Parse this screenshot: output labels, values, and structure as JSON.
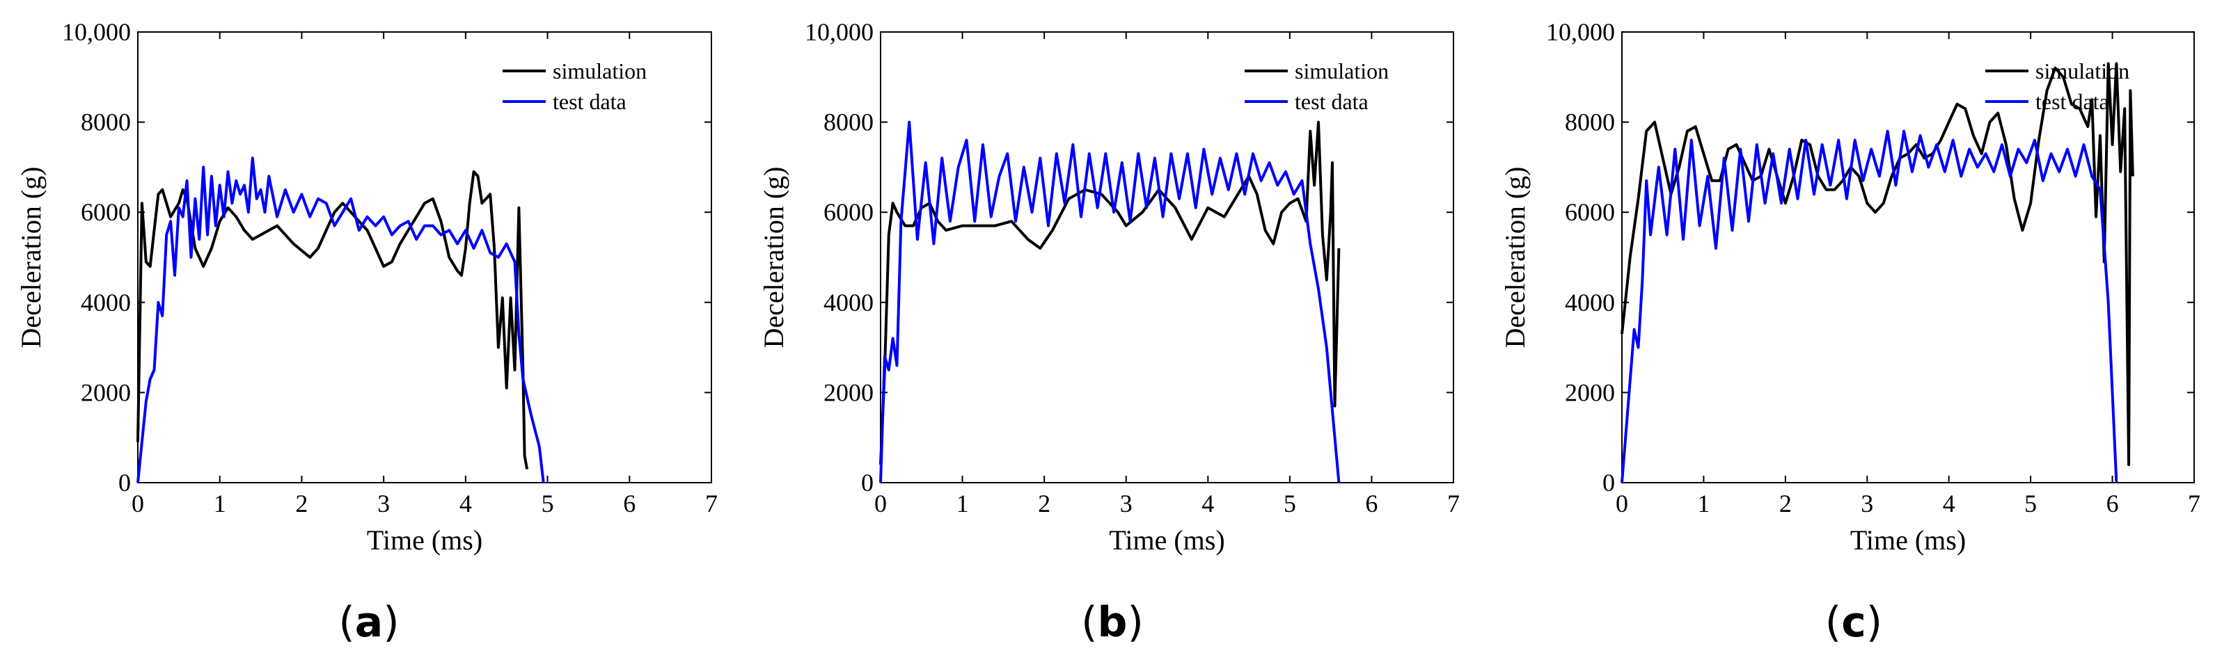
{
  "chart_data": [
    {
      "type": "line",
      "panel_label": "a",
      "xlabel": "Time (ms)",
      "ylabel": "Deceleration (g)",
      "xlim": [
        0,
        7
      ],
      "ylim": [
        0,
        10000
      ],
      "x_ticks": [
        "0",
        "1",
        "2",
        "3",
        "4",
        "5",
        "6",
        "7"
      ],
      "y_ticks": [
        "0",
        "2000",
        "4000",
        "6000",
        "8000",
        "10,000"
      ],
      "legend_position": "top-right",
      "series": [
        {
          "name": "simulation",
          "color": "#000000",
          "x": [
            0.0,
            0.05,
            0.1,
            0.15,
            0.2,
            0.25,
            0.3,
            0.4,
            0.5,
            0.55,
            0.6,
            0.7,
            0.8,
            0.9,
            1.0,
            1.1,
            1.2,
            1.3,
            1.4,
            1.5,
            1.7,
            1.9,
            2.1,
            2.2,
            2.3,
            2.4,
            2.5,
            2.6,
            2.7,
            2.8,
            2.9,
            3.0,
            3.1,
            3.2,
            3.3,
            3.5,
            3.6,
            3.7,
            3.8,
            3.9,
            3.95,
            4.0,
            4.05,
            4.1,
            4.15,
            4.2,
            4.3,
            4.35,
            4.4,
            4.45,
            4.5,
            4.55,
            4.6,
            4.65,
            4.7,
            4.72,
            4.75
          ],
          "y": [
            900,
            6200,
            4900,
            4800,
            5600,
            6400,
            6500,
            5900,
            6200,
            6500,
            6300,
            5200,
            4800,
            5200,
            5800,
            6100,
            5900,
            5600,
            5400,
            5500,
            5700,
            5300,
            5000,
            5200,
            5600,
            6000,
            6200,
            6000,
            5800,
            5600,
            5200,
            4800,
            4900,
            5300,
            5600,
            6200,
            6300,
            5800,
            5000,
            4700,
            4600,
            5200,
            6200,
            6900,
            6800,
            6200,
            6400,
            5200,
            3000,
            4100,
            2100,
            4100,
            2500,
            6100,
            2500,
            600,
            300
          ]
        },
        {
          "name": "test data",
          "color": "#0000ff",
          "x": [
            0.0,
            0.1,
            0.15,
            0.2,
            0.25,
            0.3,
            0.35,
            0.4,
            0.45,
            0.5,
            0.55,
            0.6,
            0.65,
            0.7,
            0.75,
            0.8,
            0.85,
            0.9,
            0.95,
            1.0,
            1.05,
            1.1,
            1.15,
            1.2,
            1.25,
            1.3,
            1.35,
            1.4,
            1.45,
            1.5,
            1.55,
            1.6,
            1.7,
            1.8,
            1.9,
            2.0,
            2.1,
            2.2,
            2.3,
            2.4,
            2.5,
            2.6,
            2.7,
            2.8,
            2.9,
            3.0,
            3.1,
            3.2,
            3.3,
            3.4,
            3.5,
            3.6,
            3.7,
            3.8,
            3.9,
            4.0,
            4.1,
            4.2,
            4.3,
            4.4,
            4.5,
            4.6,
            4.65,
            4.7,
            4.8,
            4.9,
            4.95
          ],
          "y": [
            0,
            1800,
            2300,
            2500,
            4000,
            3700,
            5500,
            5800,
            4600,
            6100,
            5900,
            6700,
            5000,
            6300,
            5400,
            7000,
            5500,
            6800,
            5700,
            6600,
            5900,
            6900,
            6200,
            6700,
            6400,
            6600,
            6000,
            7200,
            6300,
            6500,
            6000,
            6800,
            5900,
            6500,
            6000,
            6400,
            5900,
            6300,
            6200,
            5700,
            6000,
            6300,
            5600,
            5900,
            5700,
            5900,
            5500,
            5700,
            5800,
            5400,
            5700,
            5700,
            5500,
            5600,
            5300,
            5600,
            5200,
            5600,
            5100,
            5000,
            5300,
            4900,
            3300,
            2300,
            1500,
            800,
            0
          ]
        }
      ]
    },
    {
      "type": "line",
      "panel_label": "b",
      "xlabel": "Time (ms)",
      "ylabel": "Deceleration (g)",
      "xlim": [
        0,
        7
      ],
      "ylim": [
        0,
        10000
      ],
      "x_ticks": [
        "0",
        "1",
        "2",
        "3",
        "4",
        "5",
        "6",
        "7"
      ],
      "y_ticks": [
        "0",
        "2000",
        "4000",
        "6000",
        "8000",
        "10,000"
      ],
      "legend_position": "top-right",
      "series": [
        {
          "name": "simulation",
          "color": "#000000",
          "x": [
            0.0,
            0.05,
            0.1,
            0.15,
            0.2,
            0.3,
            0.4,
            0.5,
            0.6,
            0.7,
            0.8,
            1.0,
            1.2,
            1.4,
            1.6,
            1.8,
            1.95,
            2.1,
            2.3,
            2.5,
            2.7,
            2.9,
            3.0,
            3.2,
            3.4,
            3.6,
            3.8,
            4.0,
            4.2,
            4.4,
            4.5,
            4.6,
            4.7,
            4.8,
            4.9,
            5.0,
            5.1,
            5.2,
            5.25,
            5.3,
            5.35,
            5.4,
            5.45,
            5.5,
            5.52,
            5.55,
            5.6
          ],
          "y": [
            400,
            2500,
            5500,
            6200,
            6000,
            5700,
            5700,
            6100,
            6200,
            5800,
            5600,
            5700,
            5700,
            5700,
            5800,
            5400,
            5200,
            5600,
            6300,
            6500,
            6400,
            6000,
            5700,
            6000,
            6500,
            6100,
            5400,
            6100,
            5900,
            6500,
            6800,
            6400,
            5600,
            5300,
            6000,
            6200,
            6300,
            5800,
            7800,
            6600,
            8000,
            5500,
            4500,
            6000,
            7100,
            1700,
            5200
          ]
        },
        {
          "name": "test data",
          "color": "#0000ff",
          "x": [
            0.0,
            0.05,
            0.1,
            0.15,
            0.2,
            0.25,
            0.35,
            0.45,
            0.55,
            0.65,
            0.75,
            0.85,
            0.95,
            1.05,
            1.15,
            1.25,
            1.35,
            1.45,
            1.55,
            1.65,
            1.75,
            1.85,
            1.95,
            2.05,
            2.15,
            2.25,
            2.35,
            2.45,
            2.55,
            2.65,
            2.75,
            2.85,
            2.95,
            3.05,
            3.15,
            3.25,
            3.35,
            3.45,
            3.55,
            3.65,
            3.75,
            3.85,
            3.95,
            4.05,
            4.15,
            4.25,
            4.35,
            4.45,
            4.55,
            4.65,
            4.75,
            4.85,
            4.95,
            5.05,
            5.15,
            5.25,
            5.35,
            5.45,
            5.55,
            5.6
          ],
          "y": [
            0,
            2800,
            2500,
            3200,
            2600,
            5800,
            8000,
            5400,
            7100,
            5300,
            7200,
            5800,
            7000,
            7600,
            5800,
            7500,
            5900,
            6800,
            7300,
            5800,
            7000,
            6000,
            7200,
            5700,
            7300,
            6200,
            7500,
            5900,
            7300,
            6100,
            7300,
            6000,
            7100,
            5800,
            7300,
            6100,
            7200,
            5900,
            7300,
            6300,
            7300,
            6100,
            7400,
            6400,
            7200,
            6500,
            7300,
            6400,
            7300,
            6700,
            7100,
            6600,
            6900,
            6400,
            6700,
            5300,
            4300,
            3000,
            1000,
            0
          ]
        }
      ]
    },
    {
      "type": "line",
      "panel_label": "c",
      "xlabel": "Time (ms)",
      "ylabel": "Deceleration (g)",
      "xlim": [
        0,
        7
      ],
      "ylim": [
        0,
        10000
      ],
      "x_ticks": [
        "0",
        "1",
        "2",
        "3",
        "4",
        "5",
        "6",
        "7"
      ],
      "y_ticks": [
        "0",
        "2000",
        "4000",
        "6000",
        "8000",
        "10,000"
      ],
      "legend_position": "top-right",
      "series": [
        {
          "name": "simulation",
          "color": "#000000",
          "x": [
            0.0,
            0.1,
            0.2,
            0.3,
            0.4,
            0.5,
            0.6,
            0.7,
            0.8,
            0.9,
            1.0,
            1.1,
            1.2,
            1.3,
            1.4,
            1.5,
            1.6,
            1.7,
            1.8,
            1.9,
            2.0,
            2.1,
            2.2,
            2.3,
            2.4,
            2.5,
            2.6,
            2.7,
            2.8,
            2.9,
            3.0,
            3.1,
            3.2,
            3.3,
            3.4,
            3.5,
            3.6,
            3.7,
            3.8,
            3.9,
            4.0,
            4.1,
            4.2,
            4.3,
            4.4,
            4.5,
            4.6,
            4.7,
            4.8,
            4.9,
            5.0,
            5.1,
            5.2,
            5.3,
            5.4,
            5.5,
            5.6,
            5.7,
            5.75,
            5.8,
            5.85,
            5.9,
            5.95,
            6.0,
            6.05,
            6.1,
            6.15,
            6.2,
            6.22,
            6.25
          ],
          "y": [
            3300,
            5000,
            6300,
            7800,
            8000,
            7200,
            6400,
            7000,
            7800,
            7900,
            7300,
            6700,
            6700,
            7400,
            7500,
            7100,
            6700,
            6800,
            7400,
            6800,
            6200,
            6800,
            7600,
            7500,
            6800,
            6500,
            6500,
            6700,
            7000,
            6800,
            6200,
            6000,
            6200,
            6800,
            7200,
            7300,
            7500,
            7200,
            7300,
            7600,
            8000,
            8400,
            8300,
            7700,
            7300,
            8000,
            8200,
            7500,
            6300,
            5600,
            6200,
            7600,
            8700,
            9200,
            9000,
            8400,
            8300,
            7900,
            8500,
            5900,
            7700,
            4900,
            9300,
            7500,
            9300,
            6900,
            8300,
            400,
            8700,
            6800
          ]
        },
        {
          "name": "test data",
          "color": "#0000ff",
          "x": [
            0.0,
            0.15,
            0.2,
            0.25,
            0.3,
            0.35,
            0.45,
            0.55,
            0.65,
            0.75,
            0.85,
            0.95,
            1.05,
            1.15,
            1.25,
            1.35,
            1.45,
            1.55,
            1.65,
            1.75,
            1.85,
            1.95,
            2.05,
            2.15,
            2.25,
            2.35,
            2.45,
            2.55,
            2.65,
            2.75,
            2.85,
            2.95,
            3.05,
            3.15,
            3.25,
            3.35,
            3.45,
            3.55,
            3.65,
            3.75,
            3.85,
            3.95,
            4.05,
            4.15,
            4.25,
            4.35,
            4.45,
            4.55,
            4.65,
            4.75,
            4.85,
            4.95,
            5.05,
            5.15,
            5.25,
            5.35,
            5.45,
            5.55,
            5.65,
            5.75,
            5.85,
            5.95,
            6.05
          ],
          "y": [
            0,
            3400,
            3000,
            4500,
            6700,
            5500,
            7000,
            5500,
            7400,
            5400,
            7600,
            5700,
            6800,
            5200,
            7200,
            5600,
            7400,
            5800,
            7500,
            6200,
            7300,
            6200,
            7400,
            6300,
            7600,
            6400,
            7500,
            6600,
            7600,
            6300,
            7600,
            6700,
            7400,
            6800,
            7800,
            6600,
            7800,
            6900,
            7700,
            7000,
            7500,
            6900,
            7600,
            6800,
            7400,
            7000,
            7300,
            6900,
            7500,
            6800,
            7400,
            7100,
            7600,
            6700,
            7300,
            6900,
            7400,
            6800,
            7500,
            6800,
            6500,
            4000,
            0
          ]
        }
      ]
    }
  ]
}
